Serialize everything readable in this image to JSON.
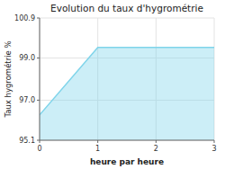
{
  "chart_data": {
    "type": "area",
    "title": "Evolution du taux d'hygrométrie",
    "xlabel": "heure par heure",
    "ylabel": "Taux hygrométrie %",
    "x": [
      0,
      1,
      3
    ],
    "values": [
      96.3,
      99.5,
      99.5
    ],
    "xlim": [
      0,
      3
    ],
    "ylim": [
      95.1,
      100.9
    ],
    "xticks": [
      0,
      1,
      2,
      3
    ],
    "yticks": [
      95.1,
      {
        "value": 97.0,
        "label": "97.0"
      },
      {
        "value": 99.0,
        "label": "99.0"
      },
      100.9
    ],
    "grid": true,
    "color": "#7fd4ea"
  }
}
